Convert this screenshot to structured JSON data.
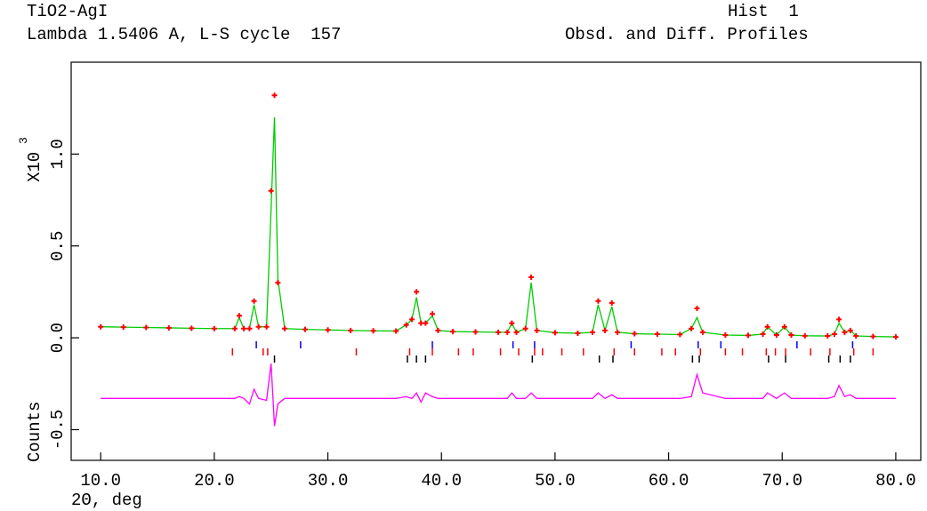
{
  "chart_data": {
    "type": "line",
    "title": "TiO2-AgI",
    "subtitle": "Lambda 1.5406 A, L-S cycle  157",
    "histogram_label": "Hist  1",
    "plot_label": "Obsd. and Diff. Profiles",
    "x_label": "2Θ, deg",
    "y_label": "Counts",
    "y_scale_label": "X10",
    "y_scale_exponent": "3",
    "xlim": [
      7.4,
      82.2
    ],
    "ylim": [
      -0.667,
      1.5
    ],
    "xticks": [
      {
        "value": 10,
        "label": "10.0"
      },
      {
        "value": 20,
        "label": "20.0"
      },
      {
        "value": 30,
        "label": "30.0"
      },
      {
        "value": 40,
        "label": "40.0"
      },
      {
        "value": 50,
        "label": "50.0"
      },
      {
        "value": 60,
        "label": "60.0"
      },
      {
        "value": 70,
        "label": "70.0"
      },
      {
        "value": 80,
        "label": "80.0"
      }
    ],
    "yticks": [
      -0.5,
      {
        "value": 0,
        "label": "0.0"
      },
      0.5,
      {
        "value": 1,
        "label": "1.0"
      }
    ],
    "x": [
      10,
      12,
      14,
      16,
      18,
      20,
      21.8,
      22.2,
      22.6,
      23.1,
      23.5,
      23.9,
      24.6,
      25.0,
      25.3,
      25.6,
      26.2,
      28,
      30,
      32,
      34,
      36,
      36.9,
      37.4,
      37.8,
      38.2,
      38.6,
      39.2,
      39.7,
      41,
      43,
      45,
      45.8,
      46.2,
      46.6,
      47.4,
      47.9,
      48.4,
      50,
      52,
      53.3,
      53.8,
      54.4,
      55.0,
      55.5,
      57,
      59,
      61,
      62.0,
      62.5,
      63.0,
      65,
      67,
      68.3,
      68.7,
      69.5,
      70.2,
      70.8,
      72,
      74,
      74.6,
      75.0,
      75.5,
      76.0,
      76.5,
      78,
      80
    ],
    "series": [
      {
        "color": "#ff0000",
        "marker": "plus",
        "values": [
          0.06,
          0.058,
          0.056,
          0.054,
          0.052,
          0.05,
          0.05,
          0.12,
          0.05,
          0.05,
          0.2,
          0.06,
          0.06,
          0.8,
          1.32,
          0.3,
          0.05,
          0.046,
          0.043,
          0.04,
          0.038,
          0.037,
          0.07,
          0.1,
          0.25,
          0.08,
          0.08,
          0.13,
          0.04,
          0.034,
          0.032,
          0.03,
          0.03,
          0.08,
          0.03,
          0.05,
          0.33,
          0.04,
          0.028,
          0.025,
          0.03,
          0.2,
          0.04,
          0.19,
          0.03,
          0.022,
          0.02,
          0.018,
          0.05,
          0.16,
          0.03,
          0.015,
          0.013,
          0.02,
          0.06,
          0.015,
          0.06,
          0.015,
          0.011,
          0.01,
          0.02,
          0.1,
          0.03,
          0.04,
          0.01,
          0.007,
          0.005
        ]
      },
      {
        "color": "#00cc00",
        "marker": "line",
        "values": [
          0.06,
          0.058,
          0.056,
          0.054,
          0.052,
          0.05,
          0.05,
          0.11,
          0.05,
          0.05,
          0.18,
          0.06,
          0.06,
          0.7,
          1.2,
          0.32,
          0.05,
          0.046,
          0.043,
          0.04,
          0.038,
          0.037,
          0.07,
          0.1,
          0.22,
          0.08,
          0.08,
          0.12,
          0.04,
          0.034,
          0.032,
          0.03,
          0.03,
          0.08,
          0.03,
          0.05,
          0.3,
          0.04,
          0.028,
          0.025,
          0.03,
          0.18,
          0.04,
          0.17,
          0.03,
          0.022,
          0.02,
          0.018,
          0.05,
          0.11,
          0.03,
          0.015,
          0.013,
          0.02,
          0.06,
          0.015,
          0.06,
          0.015,
          0.011,
          0.01,
          0.02,
          0.08,
          0.03,
          0.04,
          0.01,
          0.007,
          0.005
        ]
      },
      {
        "color": "#ff00ff",
        "marker": "line",
        "values": [
          -0.33,
          -0.33,
          -0.33,
          -0.33,
          -0.33,
          -0.33,
          -0.33,
          -0.32,
          -0.33,
          -0.36,
          -0.28,
          -0.33,
          -0.34,
          -0.14,
          -0.48,
          -0.36,
          -0.33,
          -0.33,
          -0.33,
          -0.33,
          -0.33,
          -0.33,
          -0.32,
          -0.33,
          -0.3,
          -0.35,
          -0.3,
          -0.32,
          -0.33,
          -0.33,
          -0.33,
          -0.33,
          -0.33,
          -0.3,
          -0.33,
          -0.33,
          -0.3,
          -0.33,
          -0.33,
          -0.33,
          -0.33,
          -0.3,
          -0.33,
          -0.31,
          -0.33,
          -0.33,
          -0.33,
          -0.33,
          -0.32,
          -0.2,
          -0.3,
          -0.33,
          -0.33,
          -0.33,
          -0.3,
          -0.33,
          -0.3,
          -0.33,
          -0.33,
          -0.33,
          -0.32,
          -0.26,
          -0.32,
          -0.31,
          -0.33,
          -0.33,
          -0.33
        ]
      }
    ],
    "reflection_ticks": [
      {
        "color": "#0000ff",
        "positions": [
          23.7,
          27.6,
          39.2,
          46.3,
          48.2,
          56.7,
          62.6,
          64.6,
          71.3,
          76.2
        ]
      },
      {
        "color": "#ff0000",
        "positions": [
          21.6,
          24.3,
          24.7,
          32.5,
          37.2,
          39.2,
          41.5,
          42.8,
          45.2,
          46.8,
          48.2,
          48.9,
          50.6,
          52.5,
          55.2,
          57.0,
          59.4,
          60.6,
          62.8,
          65.0,
          66.5,
          68.6,
          69.4,
          70.3,
          72.5,
          74.2,
          76.3,
          78.0
        ]
      },
      {
        "color": "#000000",
        "positions": [
          25.3,
          37.0,
          37.8,
          38.6,
          48.0,
          53.9,
          55.1,
          62.1,
          62.7,
          68.8,
          70.3,
          74.1,
          75.1,
          76.0
        ]
      }
    ]
  }
}
